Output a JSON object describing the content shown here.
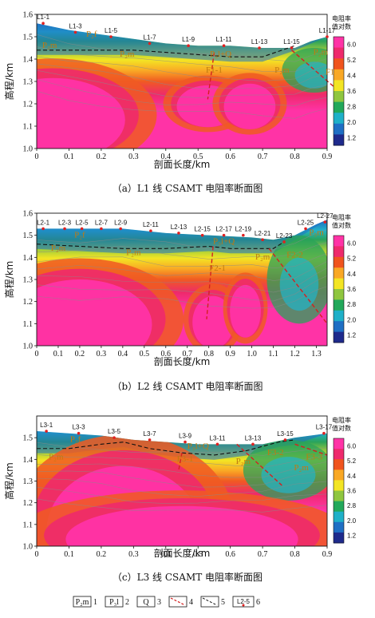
{
  "colorbar": {
    "title_line1": "电阻率",
    "title_line2": "值对数",
    "ticks": [
      "6.0",
      "5.2",
      "4.4",
      "3.6",
      "2.8",
      "2.0",
      "1.2"
    ],
    "colors": [
      "#1e2a8c",
      "#1f6fc4",
      "#1fb0c8",
      "#22a85a",
      "#8fc63f",
      "#f3e524",
      "#f9a825",
      "#f0541e",
      "#ee2a6c",
      "#ff33a6"
    ]
  },
  "chart_data": [
    {
      "type": "heatmap",
      "caption": "（a）L1 线 CSAMT 电阻率断面图",
      "xlabel": "剖面长度/km",
      "ylabel": "高程/km",
      "xlim": [
        0,
        0.9
      ],
      "ylim": [
        1.0,
        1.6
      ],
      "xticks": [
        "0",
        "0.1",
        "0.2",
        "0.3",
        "0.4",
        "0.5",
        "0.6",
        "0.7",
        "0.8",
        "0.9"
      ],
      "yticks": [
        "1.0",
        "1.1",
        "1.2",
        "1.3",
        "1.4",
        "1.5",
        "1.6"
      ],
      "stations": [
        {
          "label": "L1-1",
          "x": 0.02,
          "elev": 1.56
        },
        {
          "label": "L1-3",
          "x": 0.12,
          "elev": 1.52
        },
        {
          "label": "L1-5",
          "x": 0.23,
          "elev": 1.5
        },
        {
          "label": "L1-7",
          "x": 0.35,
          "elev": 1.47
        },
        {
          "label": "L1-9",
          "x": 0.47,
          "elev": 1.46
        },
        {
          "label": "L1-11",
          "x": 0.58,
          "elev": 1.46
        },
        {
          "label": "L1-13",
          "x": 0.69,
          "elev": 1.45
        },
        {
          "label": "L1-15",
          "x": 0.79,
          "elev": 1.45
        },
        {
          "label": "L1-17",
          "x": 0.9,
          "elev": 1.5
        }
      ],
      "units": [
        {
          "label": "P₂f",
          "x": 0.17,
          "elev": 1.5
        },
        {
          "label": "P₂m",
          "x": 0.28,
          "elev": 1.41
        },
        {
          "label": "P₂m",
          "x": 0.04,
          "elev": 1.45
        },
        {
          "label": "P₃l+Q",
          "x": 0.57,
          "elev": 1.41
        },
        {
          "label": "F1-1",
          "x": 0.55,
          "elev": 1.34
        },
        {
          "label": "P₂m",
          "x": 0.76,
          "elev": 1.34
        },
        {
          "label": "P₂m",
          "x": 0.88,
          "elev": 1.42
        },
        {
          "label": "F1-2",
          "x": 0.92,
          "elev": 1.33
        }
      ],
      "surface": [
        [
          0,
          1.56
        ],
        [
          0.1,
          1.53
        ],
        [
          0.2,
          1.51
        ],
        [
          0.3,
          1.49
        ],
        [
          0.4,
          1.47
        ],
        [
          0.5,
          1.46
        ],
        [
          0.6,
          1.46
        ],
        [
          0.7,
          1.45
        ],
        [
          0.8,
          1.45
        ],
        [
          0.85,
          1.48
        ],
        [
          0.9,
          1.5
        ]
      ],
      "boundary": [
        [
          0,
          1.44
        ],
        [
          0.1,
          1.44
        ],
        [
          0.2,
          1.44
        ],
        [
          0.3,
          1.44
        ],
        [
          0.4,
          1.43
        ],
        [
          0.5,
          1.42
        ],
        [
          0.6,
          1.41
        ],
        [
          0.7,
          1.41
        ],
        [
          0.76,
          1.44
        ],
        [
          0.8,
          1.46
        ]
      ],
      "faults": [
        [
          [
            0.55,
            1.43
          ],
          [
            0.53,
            1.22
          ]
        ],
        [
          [
            0.79,
            1.44
          ],
          [
            0.95,
            1.24
          ]
        ]
      ],
      "basins": [
        {
          "cx": 0.05,
          "cy": 1.15,
          "rx": 0.28,
          "ry": 0.22,
          "tint": 0.1
        },
        {
          "cx": 0.53,
          "cy": 1.2,
          "rx": 0.12,
          "ry": 0.11,
          "tint": 0.25
        },
        {
          "cx": 0.66,
          "cy": 1.2,
          "rx": 0.1,
          "ry": 0.12,
          "tint": 0.3
        }
      ],
      "highs": [
        {
          "cx": 0.86,
          "cy": 1.35,
          "rx": 0.1,
          "ry": 0.1,
          "kind": "green"
        }
      ]
    },
    {
      "type": "heatmap",
      "caption": "（b）L2 线 CSAMT 电阻率断面图",
      "xlabel": "剖面长度/km",
      "ylabel": "高程/km",
      "xlim": [
        0,
        1.35
      ],
      "ylim": [
        1.0,
        1.6
      ],
      "xticks": [
        "0",
        "0.1",
        "0.2",
        "0.3",
        "0.4",
        "0.5",
        "0.6",
        "0.7",
        "0.8",
        "0.9",
        "1.0",
        "1.1",
        "1.2",
        "1.3"
      ],
      "yticks": [
        "1.0",
        "1.1",
        "1.2",
        "1.3",
        "1.4",
        "1.5",
        "1.6"
      ],
      "stations": [
        {
          "label": "L2-1",
          "x": 0.03,
          "elev": 1.53
        },
        {
          "label": "L2-3",
          "x": 0.13,
          "elev": 1.53
        },
        {
          "label": "L2-5",
          "x": 0.21,
          "elev": 1.53
        },
        {
          "label": "L2-7",
          "x": 0.3,
          "elev": 1.53
        },
        {
          "label": "L2-9",
          "x": 0.39,
          "elev": 1.53
        },
        {
          "label": "L2-11",
          "x": 0.53,
          "elev": 1.52
        },
        {
          "label": "L2-13",
          "x": 0.66,
          "elev": 1.51
        },
        {
          "label": "L2-15",
          "x": 0.77,
          "elev": 1.5
        },
        {
          "label": "L2-17",
          "x": 0.87,
          "elev": 1.5
        },
        {
          "label": "L2-19",
          "x": 0.96,
          "elev": 1.5
        },
        {
          "label": "L2-21",
          "x": 1.05,
          "elev": 1.48
        },
        {
          "label": "L2-23",
          "x": 1.15,
          "elev": 1.47
        },
        {
          "label": "L2-25",
          "x": 1.25,
          "elev": 1.53
        },
        {
          "label": "L2-27",
          "x": 1.34,
          "elev": 1.56
        }
      ],
      "units": [
        {
          "label": "P₂f",
          "x": 0.2,
          "elev": 1.49
        },
        {
          "label": "P₂m",
          "x": 0.45,
          "elev": 1.41
        },
        {
          "label": "P₂m",
          "x": 0.1,
          "elev": 1.43
        },
        {
          "label": "P₃l+Q",
          "x": 0.87,
          "elev": 1.46
        },
        {
          "label": "F2-1",
          "x": 0.84,
          "elev": 1.34
        },
        {
          "label": "P₂m",
          "x": 1.05,
          "elev": 1.39
        },
        {
          "label": "F2-2",
          "x": 1.2,
          "elev": 1.4
        },
        {
          "label": "P₃m",
          "x": 1.3,
          "elev": 1.5
        }
      ],
      "surface": [
        [
          0,
          1.53
        ],
        [
          0.2,
          1.53
        ],
        [
          0.4,
          1.53
        ],
        [
          0.6,
          1.51
        ],
        [
          0.8,
          1.5
        ],
        [
          1.0,
          1.49
        ],
        [
          1.1,
          1.48
        ],
        [
          1.2,
          1.5
        ],
        [
          1.3,
          1.55
        ],
        [
          1.35,
          1.57
        ]
      ],
      "boundary": [
        [
          0,
          1.46
        ],
        [
          0.2,
          1.45
        ],
        [
          0.4,
          1.44
        ],
        [
          0.6,
          1.44
        ],
        [
          0.8,
          1.45
        ],
        [
          0.9,
          1.44
        ],
        [
          1.0,
          1.44
        ],
        [
          1.1,
          1.44
        ],
        [
          1.15,
          1.47
        ]
      ],
      "faults": [
        [
          [
            0.82,
            1.45
          ],
          [
            0.79,
            1.12
          ]
        ],
        [
          [
            1.08,
            1.44
          ],
          [
            1.35,
            1.1
          ]
        ]
      ],
      "basins": [
        {
          "cx": 0.2,
          "cy": 1.12,
          "rx": 0.42,
          "ry": 0.24,
          "tint": 0.1
        },
        {
          "cx": 0.82,
          "cy": 1.12,
          "rx": 0.12,
          "ry": 0.14,
          "tint": 0.25
        },
        {
          "cx": 0.97,
          "cy": 1.17,
          "rx": 0.09,
          "ry": 0.14,
          "tint": 0.3
        }
      ],
      "highs": [
        {
          "cx": 1.22,
          "cy": 1.3,
          "rx": 0.15,
          "ry": 0.2,
          "kind": "green"
        }
      ]
    },
    {
      "type": "heatmap",
      "caption": "（c）L3 线 CSAMT 电阻率断面图",
      "xlabel": "剖面长度/km",
      "ylabel": "高程/km",
      "xlim": [
        0,
        0.9
      ],
      "ylim": [
        1.0,
        1.6
      ],
      "xticks": [
        "0",
        "0.1",
        "0.2",
        "0.3",
        "0.4",
        "0.5",
        "0.6",
        "0.7",
        "0.8",
        "0.9"
      ],
      "yticks": [
        "1.0",
        "1.1",
        "1.2",
        "1.3",
        "1.4",
        "1.5"
      ],
      "stations": [
        {
          "label": "L3-1",
          "x": 0.03,
          "elev": 1.53
        },
        {
          "label": "L3-3",
          "x": 0.13,
          "elev": 1.52
        },
        {
          "label": "L3-5",
          "x": 0.24,
          "elev": 1.5
        },
        {
          "label": "L3-7",
          "x": 0.35,
          "elev": 1.49
        },
        {
          "label": "L3-9",
          "x": 0.46,
          "elev": 1.48
        },
        {
          "label": "L3-11",
          "x": 0.56,
          "elev": 1.47
        },
        {
          "label": "L3-13",
          "x": 0.67,
          "elev": 1.47
        },
        {
          "label": "L3-15",
          "x": 0.77,
          "elev": 1.49
        },
        {
          "label": "L3-17",
          "x": 0.89,
          "elev": 1.52
        }
      ],
      "units": [
        {
          "label": "P₂f",
          "x": 0.12,
          "elev": 1.48
        },
        {
          "label": "P₂m",
          "x": 0.06,
          "elev": 1.4
        },
        {
          "label": "P₃l+Q",
          "x": 0.5,
          "elev": 1.45
        },
        {
          "label": "F3-1",
          "x": 0.46,
          "elev": 1.39
        },
        {
          "label": "P₂m",
          "x": 0.64,
          "elev": 1.38
        },
        {
          "label": "F3-2",
          "x": 0.74,
          "elev": 1.42
        },
        {
          "label": "F3-3",
          "x": 0.86,
          "elev": 1.4
        },
        {
          "label": "P₂m",
          "x": 0.82,
          "elev": 1.35
        }
      ],
      "surface": [
        [
          0,
          1.53
        ],
        [
          0.1,
          1.52
        ],
        [
          0.2,
          1.51
        ],
        [
          0.3,
          1.49
        ],
        [
          0.4,
          1.48
        ],
        [
          0.5,
          1.47
        ],
        [
          0.6,
          1.47
        ],
        [
          0.7,
          1.47
        ],
        [
          0.8,
          1.5
        ],
        [
          0.9,
          1.52
        ]
      ],
      "boundary": [
        [
          0,
          1.45
        ],
        [
          0.1,
          1.45
        ],
        [
          0.2,
          1.47
        ],
        [
          0.27,
          1.48
        ],
        [
          0.35,
          1.45
        ],
        [
          0.45,
          1.43
        ],
        [
          0.55,
          1.42
        ],
        [
          0.65,
          1.44
        ],
        [
          0.75,
          1.48
        ],
        [
          0.8,
          1.49
        ]
      ],
      "faults": [
        [
          [
            0.45,
            1.43
          ],
          [
            0.44,
            1.35
          ]
        ],
        [
          [
            0.62,
            1.47
          ],
          [
            0.76,
            1.28
          ]
        ],
        [
          [
            0.8,
            1.47
          ],
          [
            0.9,
            1.42
          ]
        ]
      ],
      "basins": [
        {
          "cx": 0.27,
          "cy": 1.1,
          "rx": 0.3,
          "ry": 0.36,
          "tint": 0.05
        },
        {
          "cx": 0.45,
          "cy": 1.05,
          "rx": 0.45,
          "ry": 0.18,
          "tint": 0.08
        }
      ],
      "highs": [
        {
          "cx": 0.78,
          "cy": 1.35,
          "rx": 0.14,
          "ry": 0.14,
          "kind": "green"
        }
      ]
    }
  ],
  "legend": [
    {
      "symbol": "P₂m",
      "num": "1",
      "kind": "box"
    },
    {
      "symbol": "P₃l",
      "num": "2",
      "kind": "box"
    },
    {
      "symbol": "Q",
      "num": "3",
      "kind": "box"
    },
    {
      "symbol": "",
      "num": "4",
      "kind": "fault"
    },
    {
      "symbol": "",
      "num": "5",
      "kind": "boundary"
    },
    {
      "symbol": "L2-5",
      "num": "6",
      "kind": "station"
    }
  ]
}
